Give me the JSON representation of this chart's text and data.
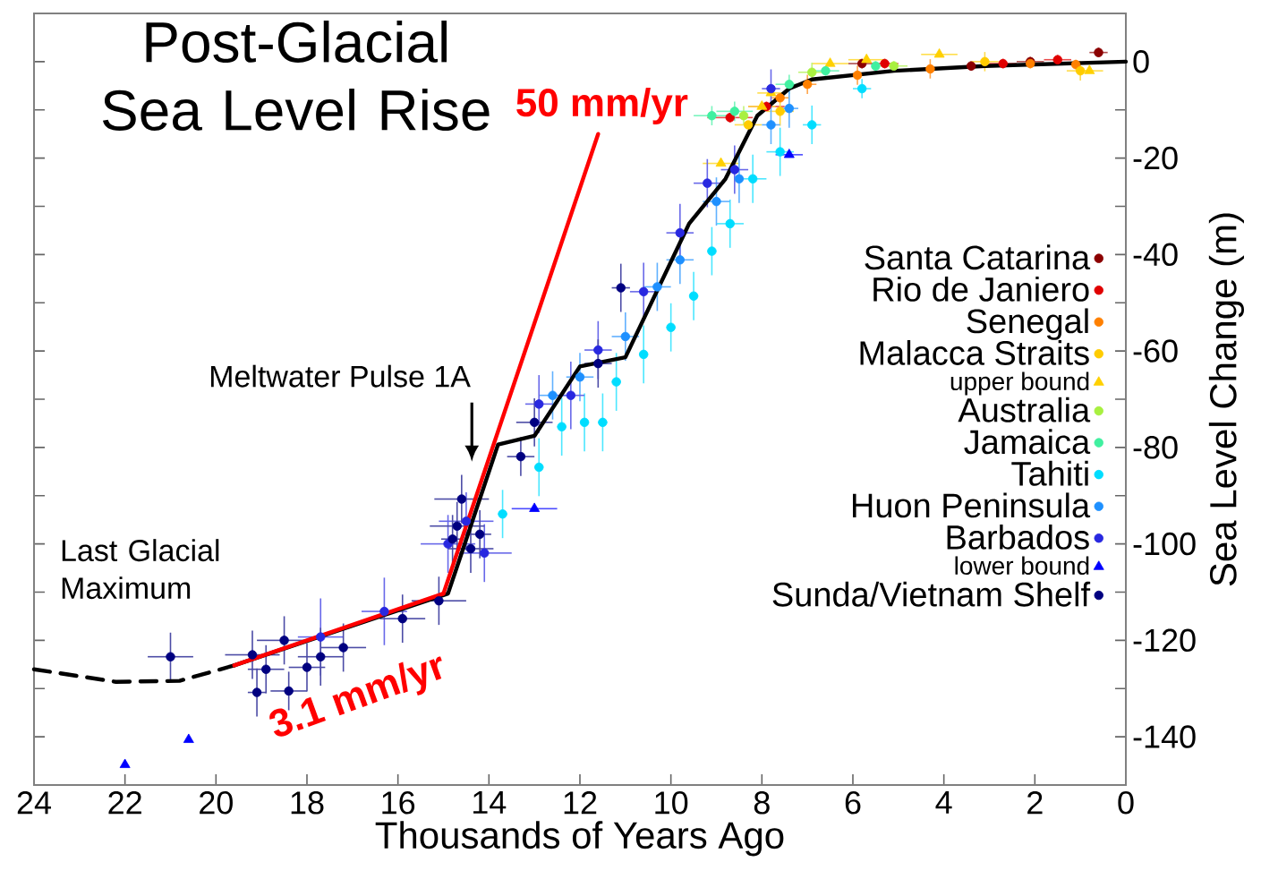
{
  "chart_data": {
    "type": "scatter",
    "title": "Post-Glacial Sea Level Rise",
    "xlabel": "Thousands of Years Ago",
    "ylabel": "Sea Level Change (m)",
    "xlim": [
      24,
      0
    ],
    "xticks": [
      24,
      22,
      20,
      18,
      16,
      14,
      12,
      10,
      8,
      6,
      4,
      2,
      0
    ],
    "ylim": [
      -150,
      10
    ],
    "yticks": [
      -140,
      {
        "value": -130,
        "label": null
      },
      -120,
      {
        "value": -110,
        "label": null
      },
      -100,
      {
        "value": -90,
        "label": null
      },
      -80,
      {
        "value": -70,
        "label": null
      },
      -60,
      {
        "value": -50,
        "label": null
      },
      -40,
      {
        "value": -30,
        "label": null
      },
      -20,
      {
        "value": -10,
        "label": null
      },
      0
    ],
    "legend": "right",
    "marker": "circle",
    "annotations": [
      "50 mm/yr",
      "3.1 mm/yr",
      "Meltwater Pulse 1A",
      "Last Glacial Maximum"
    ],
    "series": [
      {
        "name": "Santa Catarina",
        "color": "#8b0000",
        "x": [
          5.8,
          3.4,
          2.1,
          0.6
        ],
        "values": [
          -0.4,
          -0.9,
          0,
          1.9
        ],
        "errors": [
          1,
          1,
          1,
          1
        ],
        "xerrors": [
          0.3,
          null,
          0.3,
          0.2
        ]
      },
      {
        "name": "Rio de Janiero",
        "color": "#e00000",
        "x": [
          8.7,
          7.9,
          5.3,
          2.7,
          1.5
        ],
        "values": [
          -11.6,
          -9.3,
          -0.4,
          -0.4,
          0.4
        ],
        "errors": [
          1,
          1,
          1,
          1,
          1
        ],
        "xerrors": [
          0.5,
          0.4,
          0.3,
          0.3,
          0.3
        ]
      },
      {
        "name": "Senegal",
        "color": "#ff8000",
        "x": [
          7.6,
          7.0,
          5.9,
          4.3,
          2.1,
          1.1
        ],
        "values": [
          -7.5,
          -4.7,
          -2.8,
          -1.5,
          -0.4,
          -0.6
        ],
        "errors": [
          null,
          2,
          2,
          2,
          1,
          1
        ],
        "xerrors": [
          0.2,
          0.2,
          null,
          null,
          null,
          null
        ]
      },
      {
        "name": "Malacca Straits",
        "color": "#ffcc00",
        "x": [
          8.3,
          7.6,
          3.1,
          1.0
        ],
        "values": [
          -13.1,
          -10.3,
          0,
          -1.9
        ],
        "errors": [
          null,
          3,
          2,
          2
        ],
        "xerrors": [
          0.3,
          0.3,
          0.3,
          0.3
        ]
      },
      {
        "name": "upper bound",
        "color": "#ffd000",
        "marker": "triangle",
        "x": [
          8.9,
          8.0,
          7.8,
          6.5,
          5.7,
          4.1,
          0.8
        ],
        "values": [
          -21.1,
          -9.3,
          -6.5,
          -0.4,
          0.4,
          1.5,
          -1.9
        ],
        "errors": [
          null,
          null,
          null,
          null,
          null,
          null,
          null
        ],
        "xerrors": [
          0.4,
          0.3,
          0.3,
          0.4,
          0.4,
          0.4,
          0.3
        ]
      },
      {
        "name": "Australia",
        "color": "#a8f040",
        "x": [
          8.4,
          6.9,
          5.1
        ],
        "values": [
          -11.2,
          -2.2,
          -0.9
        ],
        "errors": [
          2,
          2,
          1
        ],
        "xerrors": [
          null,
          0.3,
          0.3
        ]
      },
      {
        "name": "Jamaica",
        "color": "#40f0a0",
        "x": [
          9.1,
          8.6,
          7.4,
          6.6,
          5.5
        ],
        "values": [
          -11.2,
          -10.3,
          -4.7,
          -1.9,
          -0.9
        ],
        "errors": [
          2,
          2,
          2,
          1,
          1
        ],
        "xerrors": [
          0.4,
          0.4,
          0.3,
          0.3,
          null
        ]
      },
      {
        "name": "Tahiti",
        "color": "#00ddff",
        "x": [
          13.7,
          12.9,
          12.4,
          11.9,
          11.5,
          11.2,
          10.6,
          10.0,
          9.5,
          9.1,
          8.7,
          8.2,
          7.6,
          6.9,
          5.8
        ],
        "values": [
          -93.8,
          -84.1,
          -75.7,
          -74.8,
          -74.8,
          -66.4,
          -60.7,
          -55.1,
          -48.6,
          -39.3,
          -33.6,
          -24.3,
          -18.7,
          -13.1,
          -5.6
        ],
        "errors": [
          5,
          6,
          6,
          6,
          6,
          6,
          6,
          5,
          5,
          5,
          5,
          5,
          5,
          4,
          2
        ],
        "xerrors": [
          0.1,
          0.1,
          0.1,
          0.1,
          0.1,
          0.1,
          0.1,
          0.1,
          0.1,
          0.1,
          0.3,
          0.3,
          0.3,
          0.2,
          0.2
        ]
      },
      {
        "name": "Huon Peninsula",
        "color": "#1e90ff",
        "x": [
          12.6,
          12.0,
          11.0,
          10.3,
          9.8,
          9.0,
          8.5,
          7.8,
          7.4
        ],
        "values": [
          -69.2,
          -65.4,
          -57,
          -46.7,
          -41.1,
          -29,
          -24.3,
          -13.1,
          -9.7
        ],
        "errors": [
          5,
          5,
          5,
          5,
          5,
          5,
          5,
          4,
          4
        ],
        "xerrors": [
          0.3,
          0.3,
          0.3,
          0.3,
          0.3,
          0.3,
          null,
          0.2,
          0.2
        ]
      },
      {
        "name": "Barbados",
        "color": "#2828e0",
        "x": [
          17.7,
          16.3,
          14.9,
          14.5,
          14.1,
          12.9,
          12.2,
          11.6,
          10.6,
          9.8,
          9.2,
          8.6,
          7.8
        ],
        "values": [
          -119.3,
          -114,
          -100,
          -95.3,
          -101.9,
          -71,
          -69.2,
          -59.8,
          -47.7,
          -35.5,
          -25.2,
          -22.4,
          -5.6
        ],
        "errors": [
          8,
          7,
          6,
          6,
          6,
          6,
          7,
          6,
          6,
          6,
          5,
          5,
          4
        ],
        "xerrors": [
          0.5,
          0.5,
          0.6,
          0.6,
          0.6,
          0.3,
          0.3,
          0.3,
          0.3,
          0.3,
          0.3,
          0.3,
          0.2
        ]
      },
      {
        "name": "lower bound",
        "color": "#0000ff",
        "marker": "triangle",
        "x": [
          22.0,
          20.6,
          13.0,
          7.4
        ],
        "values": [
          -145.8,
          -140.6,
          -92.7,
          -19.3
        ],
        "errors": [
          null,
          null,
          null,
          null
        ],
        "xerrors": [
          null,
          null,
          0.5,
          0.3
        ]
      },
      {
        "name": "Sunda/Vietnam Shelf",
        "color": "#000080",
        "x": [
          21.0,
          19.2,
          18.9,
          18.4,
          19.1,
          17.7,
          18.0,
          17.2,
          18.5,
          15.9,
          15.1,
          14.6,
          14.8,
          14.4,
          14.2,
          14.7,
          13.3,
          13.0,
          11.6,
          11.1
        ],
        "values": [
          -123.4,
          -123,
          -126,
          -130.5,
          -130.8,
          -123.4,
          -125.6,
          -121.5,
          -120,
          -115.5,
          -111.8,
          -90.7,
          -99,
          -101,
          -98,
          -96.3,
          -81.9,
          -74.8,
          -62.6,
          -46.9
        ],
        "errors": [
          5,
          5,
          5,
          4,
          5,
          6,
          5,
          5,
          5,
          5,
          5,
          5,
          5,
          5,
          5,
          5,
          4,
          5,
          5,
          5
        ],
        "xerrors": [
          0.5,
          0.6,
          0.4,
          0.4,
          0.2,
          0.5,
          0.4,
          0.5,
          0.6,
          0.5,
          0.6,
          0.6,
          0.25,
          0.5,
          0.25,
          0.6,
          0.3,
          0.4,
          0.3,
          0.2
        ]
      },
      {
        "type": "line",
        "color": "#000000",
        "marker": "none",
        "line_style": "dashed",
        "x": [
          24,
          22.2,
          20.8,
          19.6
        ],
        "values": [
          -126,
          -128.6,
          -128.4,
          -125.2
        ]
      },
      {
        "type": "line",
        "color": "#000000",
        "marker": "none",
        "x": [
          19.6,
          14.9,
          14.5,
          13.8,
          13.0,
          12.0,
          11.0,
          9.6,
          8.8,
          8.1,
          7.4,
          6.9,
          5.1,
          3.1,
          0
        ],
        "values": [
          -125.2,
          -110.3,
          -99.1,
          -79.4,
          -77.6,
          -63.2,
          -61.3,
          -33.6,
          -24.3,
          -11.2,
          -5.6,
          -3.7,
          -1.9,
          -0.9,
          0
        ]
      },
      {
        "type": "line",
        "color": "#ff0000",
        "marker": "none",
        "x": [
          19.6,
          15.0
        ],
        "values": [
          -125.2,
          -110.3
        ]
      },
      {
        "type": "line",
        "color": "#ff0000",
        "marker": "none",
        "x": [
          15.0,
          11.6
        ],
        "values": [
          -110.3,
          -15.0
        ]
      }
    ]
  }
}
